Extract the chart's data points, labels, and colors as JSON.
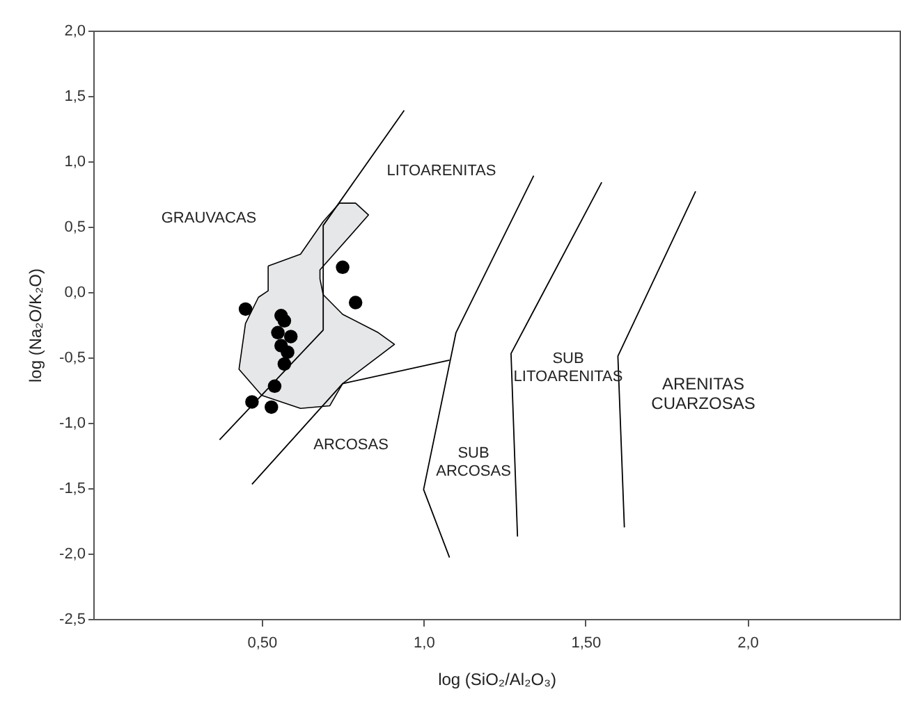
{
  "chart_data": {
    "type": "scatter",
    "xlabel": "log (SiO₂/Al₂O₃)",
    "ylabel": "log (Na₂O/K₂O)",
    "xlim": [
      -0.02,
      2.47
    ],
    "ylim": [
      -2.5,
      2.0
    ],
    "xticks": [
      {
        "value": 0.5,
        "label": "0,50"
      },
      {
        "value": 1.0,
        "label": "1,0"
      },
      {
        "value": 1.5,
        "label": "1,50"
      },
      {
        "value": 2.0,
        "label": "2,0"
      }
    ],
    "yticks": [
      {
        "value": -2.5,
        "label": "-2,5"
      },
      {
        "value": -2.0,
        "label": "-2,0"
      },
      {
        "value": -1.5,
        "label": "-1,5"
      },
      {
        "value": -1.0,
        "label": "-1,0"
      },
      {
        "value": -0.5,
        "label": "-0,5"
      },
      {
        "value": 0.0,
        "label": "0,0"
      },
      {
        "value": 0.5,
        "label": "0,5"
      },
      {
        "value": 1.0,
        "label": "1,0"
      },
      {
        "value": 1.5,
        "label": "1,5"
      },
      {
        "value": 2.0,
        "label": "2,0"
      }
    ],
    "grid": false,
    "series": [
      {
        "type": "area",
        "color": "#e6e7e8",
        "x": [
          0.52,
          0.62,
          0.69,
          0.74,
          0.79,
          0.83,
          0.68,
          0.68,
          0.69,
          0.75,
          0.86,
          0.91,
          0.75,
          0.71,
          0.62,
          0.5,
          0.43,
          0.45,
          0.49,
          0.52
        ],
        "values": [
          0.2,
          0.29,
          0.54,
          0.68,
          0.68,
          0.59,
          0.17,
          0.1,
          -0.02,
          -0.17,
          -0.31,
          -0.4,
          -0.7,
          -0.87,
          -0.89,
          -0.79,
          -0.59,
          -0.24,
          -0.04,
          0.01
        ]
      },
      {
        "type": "line",
        "color": "#000000",
        "x": [
          0.37,
          0.69,
          0.69,
          0.94
        ],
        "values": [
          -1.13,
          -0.29,
          0.51,
          1.39
        ]
      },
      {
        "type": "line",
        "color": "#000000",
        "x": [
          0.47,
          0.75,
          1.08
        ],
        "values": [
          -1.47,
          -0.7,
          -0.52
        ]
      },
      {
        "type": "line",
        "color": "#000000",
        "x": [
          1.08,
          1.0,
          1.1,
          1.34
        ],
        "values": [
          -2.03,
          -1.51,
          -0.31,
          0.89
        ]
      },
      {
        "type": "line",
        "color": "#000000",
        "x": [
          1.29,
          1.27,
          1.55
        ],
        "values": [
          -1.87,
          -0.47,
          0.84
        ]
      },
      {
        "type": "line",
        "color": "#000000",
        "x": [
          1.62,
          1.6,
          1.84
        ],
        "values": [
          -1.8,
          -0.49,
          0.77
        ]
      },
      {
        "type": "scatter",
        "color": "#000000",
        "marker": "circle",
        "x": [
          0.45,
          0.56,
          0.57,
          0.55,
          0.59,
          0.56,
          0.58,
          0.57,
          0.54,
          0.47,
          0.53,
          0.75,
          0.79
        ],
        "values": [
          -0.13,
          -0.18,
          -0.22,
          -0.31,
          -0.34,
          -0.41,
          -0.46,
          -0.55,
          -0.72,
          -0.84,
          -0.88,
          0.19,
          -0.08
        ]
      }
    ],
    "annotations": [
      "GRAUVACAS",
      "LITOARENITAS",
      "ARCOSAS",
      "SUB\nARCOSAS",
      "SUB\nLITOARENITAS",
      "ARENITAS\nCUARZOSAS"
    ]
  }
}
